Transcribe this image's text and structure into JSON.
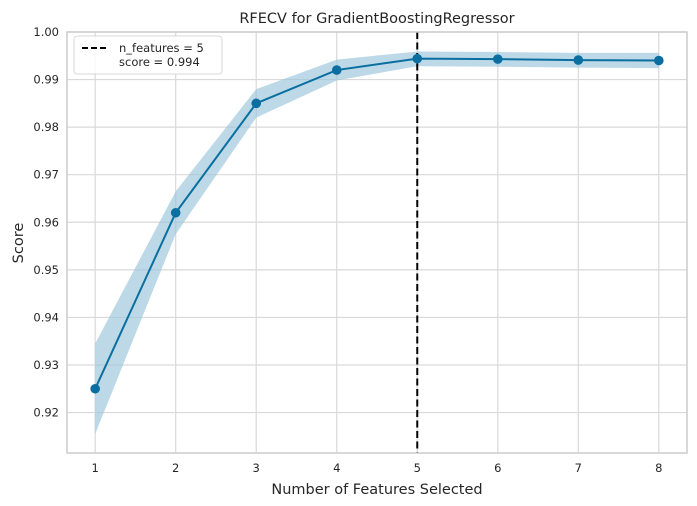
{
  "chart_data": {
    "type": "line",
    "title": "RFECV for GradientBoostingRegressor",
    "xlabel": "Number of Features Selected",
    "ylabel": "Score",
    "x": [
      1,
      2,
      3,
      4,
      5,
      6,
      7,
      8
    ],
    "series": [
      {
        "values": [
          0.925,
          0.962,
          0.985,
          0.992,
          0.9944,
          0.9943,
          0.9941,
          0.994
        ],
        "upper": [
          0.9345,
          0.9665,
          0.988,
          0.9942,
          0.9959,
          0.9958,
          0.9956,
          0.9956
        ],
        "lower": [
          0.9155,
          0.9575,
          0.982,
          0.9898,
          0.9928,
          0.9927,
          0.9925,
          0.9924
        ],
        "color": "#0a6fa0",
        "band_color": "#9ac5dc"
      }
    ],
    "xticks": [
      "1",
      "2",
      "3",
      "4",
      "5",
      "6",
      "7",
      "8"
    ],
    "yticks": [
      "0.92",
      "0.93",
      "0.94",
      "0.95",
      "0.96",
      "0.97",
      "0.98",
      "0.99",
      "1.00"
    ],
    "xlim": [
      0.65,
      8.35
    ],
    "ylim": [
      0.9115,
      1.0
    ],
    "grid": true,
    "legend_position": "top-left",
    "vline": {
      "x": 5,
      "color": "#000000",
      "style": "dashed"
    },
    "legend": [
      {
        "text": "n_features = 5"
      },
      {
        "text": "score = 0.994"
      }
    ]
  }
}
